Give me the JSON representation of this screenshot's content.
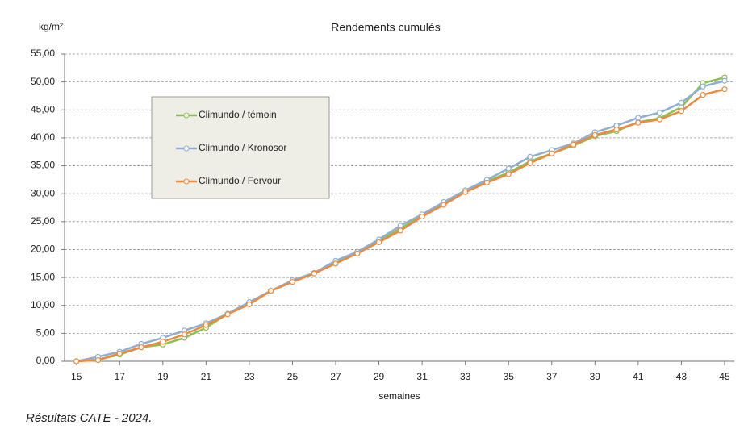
{
  "chart_data": {
    "type": "line",
    "title": "Rendements cumulés",
    "ylabel": "kg/m²",
    "xlabel": "semaines",
    "caption": "Résultats CATE - 2024.",
    "x": [
      15,
      16,
      17,
      18,
      19,
      20,
      21,
      22,
      23,
      24,
      25,
      26,
      27,
      28,
      29,
      30,
      31,
      32,
      33,
      34,
      35,
      36,
      37,
      38,
      39,
      40,
      41,
      42,
      43,
      44,
      45
    ],
    "xlim": [
      14.45,
      45.45
    ],
    "xticks": [
      15,
      17,
      19,
      21,
      23,
      25,
      27,
      29,
      31,
      33,
      35,
      37,
      39,
      41,
      43,
      45
    ],
    "ylim": [
      0,
      55
    ],
    "yticks": [
      {
        "value": 0,
        "label": "0,00"
      },
      {
        "value": 5,
        "label": "5,00"
      },
      {
        "value": 10,
        "label": "10,00"
      },
      {
        "value": 15,
        "label": "15,00"
      },
      {
        "value": 20,
        "label": "20,00"
      },
      {
        "value": 25,
        "label": "25,00"
      },
      {
        "value": 30,
        "label": "30,00"
      },
      {
        "value": 35,
        "label": "35,00"
      },
      {
        "value": 40,
        "label": "40,00"
      },
      {
        "value": 45,
        "label": "45,00"
      },
      {
        "value": 50,
        "label": "50,00"
      },
      {
        "value": 55,
        "label": "55,00"
      }
    ],
    "grid": true,
    "legend": "upper left",
    "series": [
      {
        "name": "Climundo / témoin",
        "color": "#8cc152",
        "values": [
          0,
          0.3,
          1.2,
          2.5,
          3.0,
          4.2,
          6.0,
          8.5,
          10.5,
          12.6,
          14.3,
          15.8,
          17.8,
          19.5,
          21.5,
          23.8,
          26.0,
          28.2,
          30.5,
          32.2,
          33.8,
          35.8,
          37.2,
          38.6,
          40.3,
          41.2,
          42.8,
          43.5,
          45.5,
          49.8,
          50.8
        ]
      },
      {
        "name": "Climundo / Kronosor",
        "color": "#8eaed6",
        "values": [
          0,
          0.8,
          1.7,
          3.1,
          4.2,
          5.5,
          6.8,
          8.5,
          10.6,
          12.6,
          14.5,
          15.8,
          18.0,
          19.6,
          21.8,
          24.3,
          26.3,
          28.5,
          30.6,
          32.5,
          34.5,
          36.6,
          37.8,
          39.0,
          41.0,
          42.2,
          43.6,
          44.5,
          46.3,
          49.2,
          50.2
        ]
      },
      {
        "name": "Climundo / Fervour",
        "color": "#ed8a3f",
        "values": [
          0,
          0.2,
          1.4,
          2.5,
          3.5,
          4.8,
          6.5,
          8.4,
          10.2,
          12.6,
          14.2,
          15.7,
          17.5,
          19.3,
          21.3,
          23.4,
          25.9,
          28.0,
          30.3,
          32.0,
          33.5,
          35.5,
          37.2,
          38.8,
          40.5,
          41.5,
          42.7,
          43.3,
          44.8,
          47.7,
          48.7
        ]
      }
    ]
  }
}
